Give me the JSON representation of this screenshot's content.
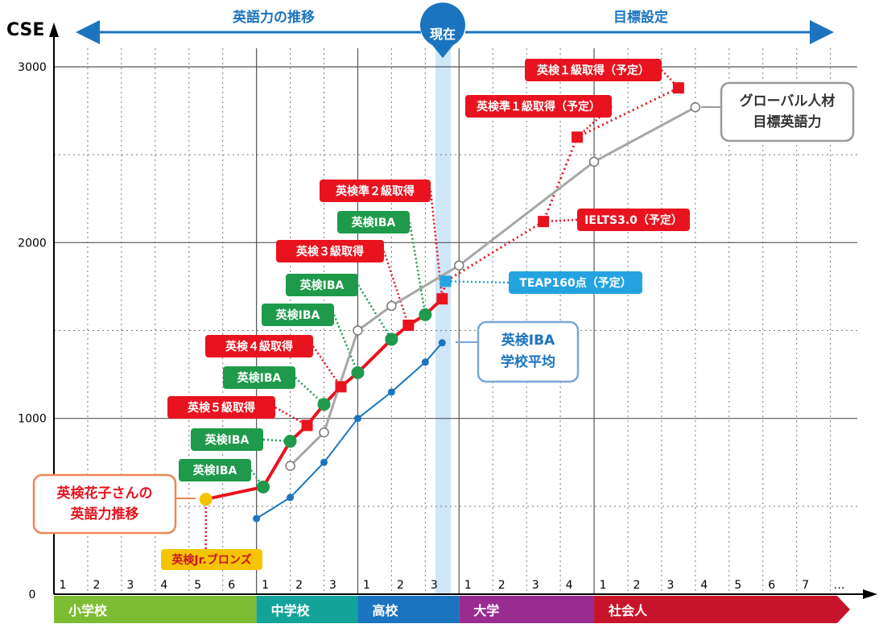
{
  "chart_data": {
    "type": "line",
    "y_axis_label": "CSE",
    "y_ticks": [
      "0",
      "1000",
      "2000",
      "3000"
    ],
    "ylim": [
      0,
      3000
    ],
    "grid": "solid at 1000s, dotted at 500s; dotted verticals per year",
    "header": {
      "left_text": "英語力の推移",
      "now_text": "現在",
      "right_text": "目標設定"
    },
    "stages": [
      {
        "name": "小学校",
        "years": [
          "1",
          "2",
          "3",
          "4",
          "5",
          "6"
        ],
        "color": "#7dbd33"
      },
      {
        "name": "中学校",
        "years": [
          "1",
          "2",
          "3"
        ],
        "color": "#14a39a"
      },
      {
        "name": "高校",
        "years": [
          "1",
          "2",
          "3"
        ],
        "color": "#1b74bf"
      },
      {
        "name": "大学",
        "years": [
          "1",
          "2",
          "3",
          "4"
        ],
        "color": "#9a2b91"
      },
      {
        "name": "社会人",
        "years": [
          "1",
          "2",
          "3",
          "4",
          "5",
          "6",
          "7",
          "…"
        ],
        "color": "#c8142b"
      }
    ],
    "series": [
      {
        "key": "hanako",
        "color": "#e8131f",
        "points": [
          {
            "t": 4.5,
            "y": 540,
            "marker": "circle-yellow"
          },
          {
            "t": 6.2,
            "y": 610,
            "marker": "circle-green"
          },
          {
            "t": 7.0,
            "y": 870,
            "marker": "circle-green"
          },
          {
            "t": 7.5,
            "y": 960,
            "marker": "square-red"
          },
          {
            "t": 8.0,
            "y": 1080,
            "marker": "circle-green"
          },
          {
            "t": 8.5,
            "y": 1180,
            "marker": "square-red"
          },
          {
            "t": 9.0,
            "y": 1260,
            "marker": "circle-green"
          },
          {
            "t": 10.0,
            "y": 1450,
            "marker": "circle-green"
          },
          {
            "t": 10.5,
            "y": 1530,
            "marker": "square-red"
          },
          {
            "t": 11.0,
            "y": 1590,
            "marker": "circle-green"
          },
          {
            "t": 11.5,
            "y": 1680,
            "marker": "square-red"
          }
        ]
      },
      {
        "key": "plan",
        "color": "#e8131f",
        "points": [
          {
            "t": 11.5,
            "y": 1680
          },
          {
            "t": 11.6,
            "y": 1780,
            "marker": "square-blue"
          },
          {
            "t": 14.5,
            "y": 2120,
            "marker": "square-red"
          },
          {
            "t": 15.5,
            "y": 2600,
            "marker": "square-red"
          },
          {
            "t": 18.5,
            "y": 2880,
            "marker": "square-red"
          }
        ]
      },
      {
        "key": "global",
        "color": "#a6a6a6",
        "points": [
          {
            "t": 7.0,
            "y": 730
          },
          {
            "t": 8.0,
            "y": 920
          },
          {
            "t": 9.0,
            "y": 1500
          },
          {
            "t": 10.0,
            "y": 1640
          },
          {
            "t": 12.0,
            "y": 1870
          },
          {
            "t": 16.0,
            "y": 2460
          },
          {
            "t": 19.0,
            "y": 2770
          }
        ]
      },
      {
        "key": "school_avg",
        "color": "#1b74bf",
        "points": [
          {
            "t": 6.0,
            "y": 430
          },
          {
            "t": 7.0,
            "y": 550
          },
          {
            "t": 8.0,
            "y": 750
          },
          {
            "t": 9.0,
            "y": 1000
          },
          {
            "t": 10.0,
            "y": 1150
          },
          {
            "t": 11.0,
            "y": 1320
          },
          {
            "t": 11.5,
            "y": 1430
          }
        ]
      }
    ],
    "annotations": [
      {
        "text": "英検Jr.ブロンズ",
        "style": "yellow",
        "t": 4.5,
        "y": 540,
        "bx": 200,
        "by": 682,
        "bw": 126,
        "bh": 26
      },
      {
        "text": "英検IBA",
        "style": "green",
        "t": 6.2,
        "y": 610,
        "bx": 222,
        "by": 570,
        "bw": 90,
        "bh": 28
      },
      {
        "text": "英検IBA",
        "style": "green",
        "t": 7.0,
        "y": 870,
        "bx": 237,
        "by": 532,
        "bw": 90,
        "bh": 28
      },
      {
        "text": "英検５級取得",
        "style": "red",
        "t": 7.5,
        "y": 960,
        "bx": 208,
        "by": 492,
        "bw": 134,
        "bh": 28
      },
      {
        "text": "英検IBA",
        "style": "green",
        "t": 8.0,
        "y": 1080,
        "bx": 277,
        "by": 455,
        "bw": 90,
        "bh": 28
      },
      {
        "text": "英検４級取得",
        "style": "red",
        "t": 8.5,
        "y": 1180,
        "bx": 255,
        "by": 416,
        "bw": 134,
        "bh": 28
      },
      {
        "text": "英検IBA",
        "style": "green",
        "t": 9.0,
        "y": 1260,
        "bx": 325,
        "by": 377,
        "bw": 90,
        "bh": 28
      },
      {
        "text": "英検IBA",
        "style": "green",
        "t": 10.0,
        "y": 1450,
        "bx": 355,
        "by": 340,
        "bw": 90,
        "bh": 28
      },
      {
        "text": "英検３級取得",
        "style": "red",
        "t": 10.5,
        "y": 1530,
        "bx": 343,
        "by": 298,
        "bw": 134,
        "bh": 28
      },
      {
        "text": "英検IBA",
        "style": "green",
        "t": 11.0,
        "y": 1590,
        "bx": 419,
        "by": 262,
        "bw": 90,
        "bh": 28
      },
      {
        "text": "英検準２級取得",
        "style": "red",
        "t": 11.5,
        "y": 1680,
        "bx": 397,
        "by": 223,
        "bw": 138,
        "bh": 28
      },
      {
        "text": "TEAP160点（予定）",
        "style": "blue",
        "t": 11.6,
        "y": 1780,
        "bx": 632,
        "by": 337,
        "bw": 166,
        "bh": 28
      },
      {
        "text": "IELTS3.0（予定）",
        "style": "red",
        "t": 14.5,
        "y": 2120,
        "bx": 717,
        "by": 259,
        "bw": 140,
        "bh": 28
      },
      {
        "text": "英検準１級取得（予定）",
        "style": "red",
        "t": 15.5,
        "y": 2600,
        "bx": 578,
        "by": 118,
        "bw": 182,
        "bh": 28
      },
      {
        "text": "英検１級取得（予定）",
        "style": "red",
        "t": 18.5,
        "y": 2880,
        "bx": 652,
        "by": 73,
        "bw": 170,
        "bh": 28
      }
    ],
    "callouts": [
      {
        "lines": [
          "英検花子さんの",
          "英語力推移"
        ],
        "style": "orange"
      },
      {
        "lines": [
          "グローバル人材",
          "目標英語力"
        ],
        "style": "gray"
      },
      {
        "lines": [
          "英検IBA",
          "学校平均"
        ],
        "style": "blue"
      }
    ]
  }
}
